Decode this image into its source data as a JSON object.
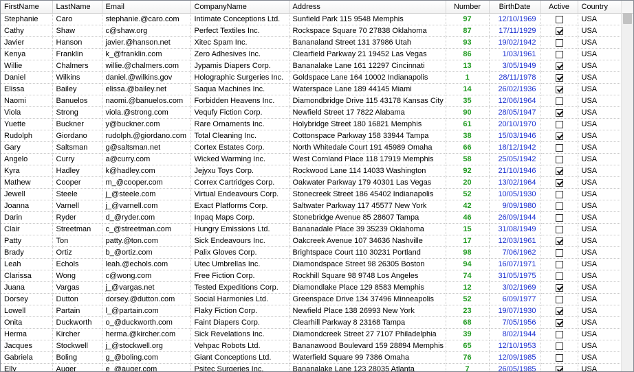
{
  "columns": [
    "FirstName",
    "LastName",
    "Email",
    "CompanyName",
    "Address",
    "Number",
    "BirthDate",
    "Active",
    "Country"
  ],
  "rows": [
    [
      "Stephanie",
      "Caro",
      "stephanie.@caro.com",
      "Intimate Conceptions Ltd.",
      "Sunfield Park 115 9548 Memphis",
      "97",
      "12/10/1969",
      false,
      "USA"
    ],
    [
      "Cathy",
      "Shaw",
      "c@shaw.org",
      "Perfect Textiles Inc.",
      "Rockspace Square 70 27838 Oklahoma",
      "87",
      "17/11/1929",
      true,
      "USA"
    ],
    [
      "Javier",
      "Hanson",
      "javier.@hanson.net",
      "Xitec Spam Inc.",
      "Bananaland Street 131 37986 Utah",
      "93",
      "19/02/1942",
      false,
      "USA"
    ],
    [
      "Kenya",
      "Franklin",
      "k_@franklin.com",
      "Zero Adhesives Inc.",
      "Clearfield Parkway 21 19452 Las Vegas",
      "86",
      "1/03/1961",
      false,
      "USA"
    ],
    [
      "Willie",
      "Chalmers",
      "willie.@chalmers.com",
      "Jypamis Diapers Corp.",
      "Bananalake Lane 161 12297 Cincinnati",
      "13",
      "3/05/1949",
      true,
      "USA"
    ],
    [
      "Daniel",
      "Wilkins",
      "daniel.@wilkins.gov",
      "Holographic Surgeries Inc.",
      "Goldspace Lane 164 10002 Indianapolis",
      "1",
      "28/11/1978",
      true,
      "USA"
    ],
    [
      "Elissa",
      "Bailey",
      "elissa.@bailey.net",
      "Saqua Machines Inc.",
      "Waterspace Lane 189 44145 Miami",
      "14",
      "26/02/1936",
      true,
      "USA"
    ],
    [
      "Naomi",
      "Banuelos",
      "naomi.@banuelos.com",
      "Forbidden Heavens Inc.",
      "Diamondbridge Drive 115 43178 Kansas City",
      "35",
      "12/06/1964",
      false,
      "USA"
    ],
    [
      "Viola",
      "Strong",
      "viola.@strong.com",
      "Vequfy Fiction Corp.",
      "Newfield Street 17 7822 Alabama",
      "90",
      "28/05/1947",
      true,
      "USA"
    ],
    [
      "Yuette",
      "Buckner",
      "y@buckner.com",
      "Rare Ornaments Inc.",
      "Holybridge Street 180 16821 Memphis",
      "61",
      "20/10/1970",
      false,
      "USA"
    ],
    [
      "Rudolph",
      "Giordano",
      "rudolph.@giordano.com",
      "Total Cleaning Inc.",
      "Cottonspace Parkway 158 33944 Tampa",
      "38",
      "15/03/1946",
      true,
      "USA"
    ],
    [
      "Gary",
      "Saltsman",
      "g@saltsman.net",
      "Cortex Estates Corp.",
      "North Whitedale Court 191 45989 Omaha",
      "66",
      "18/12/1942",
      false,
      "USA"
    ],
    [
      "Angelo",
      "Curry",
      "a@curry.com",
      "Wicked Warming Inc.",
      "West Cornland Place 118 17919 Memphis",
      "58",
      "25/05/1942",
      false,
      "USA"
    ],
    [
      "Kyra",
      "Hadley",
      "k@hadley.com",
      "Jejyxu Toys Corp.",
      "Rockwood Lane 114 14033 Washington",
      "92",
      "21/10/1946",
      true,
      "USA"
    ],
    [
      "Mathew",
      "Cooper",
      "m_@cooper.com",
      "Correx Cartridges Corp.",
      "Oakwater Parkway 179 40301 Las Vegas",
      "20",
      "13/02/1964",
      true,
      "USA"
    ],
    [
      "Jewell",
      "Steele",
      "j_@steele.com",
      "Virtual Endeavours Corp.",
      "Stonecreek Street 186 45402 Indianapolis",
      "52",
      "10/05/1930",
      false,
      "USA"
    ],
    [
      "Joanna",
      "Varnell",
      "j_@varnell.com",
      "Exact Platforms Corp.",
      "Saltwater Parkway 117 45577 New York",
      "42",
      "9/09/1980",
      false,
      "USA"
    ],
    [
      "Darin",
      "Ryder",
      "d_@ryder.com",
      "Inpaq Maps Corp.",
      "Stonebridge Avenue 85 28607 Tampa",
      "46",
      "26/09/1944",
      false,
      "USA"
    ],
    [
      "Clair",
      "Streetman",
      "c_@streetman.com",
      "Hungry Emissions Ltd.",
      "Bananadale Place 39 35239 Oklahoma",
      "15",
      "31/08/1949",
      false,
      "USA"
    ],
    [
      "Patty",
      "Ton",
      "patty.@ton.com",
      "Sick Endeavours Inc.",
      "Oakcreek Avenue 107 34636 Nashville",
      "17",
      "12/03/1961",
      true,
      "USA"
    ],
    [
      "Brady",
      "Ortiz",
      "b_@ortiz.com",
      "Palix Gloves Corp.",
      "Brightspace Court 110 30231 Portland",
      "98",
      "7/06/1962",
      false,
      "USA"
    ],
    [
      "Leah",
      "Echols",
      "leah.@echols.com",
      "Utec Umbrellas Inc.",
      "Diamondspace Street 98 26305 Boston",
      "94",
      "16/07/1971",
      false,
      "USA"
    ],
    [
      "Clarissa",
      "Wong",
      "c@wong.com",
      "Free Fiction Corp.",
      "Rockhill Square 98 9748 Los Angeles",
      "74",
      "31/05/1975",
      false,
      "USA"
    ],
    [
      "Juana",
      "Vargas",
      "j_@vargas.net",
      "Tested Expeditions Corp.",
      "Diamondlake Place 129 8583 Memphis",
      "12",
      "3/02/1969",
      true,
      "USA"
    ],
    [
      "Dorsey",
      "Dutton",
      "dorsey.@dutton.com",
      "Social Harmonies Ltd.",
      "Greenspace Drive 134 37496 Minneapolis",
      "52",
      "6/09/1977",
      false,
      "USA"
    ],
    [
      "Lowell",
      "Partain",
      "l_@partain.com",
      "Flaky Fiction Corp.",
      "Newfield Place 138 26993 New York",
      "23",
      "19/07/1930",
      true,
      "USA"
    ],
    [
      "Onita",
      "Duckworth",
      "o_@duckworth.com",
      "Faint Diapers Corp.",
      "Clearhill Parkway 8 23168 Tampa",
      "68",
      "7/05/1956",
      true,
      "USA"
    ],
    [
      "Herma",
      "Kircher",
      "herma.@kircher.com",
      "Sick Revelations Inc.",
      "Diamondcreek Street 27 7107 Philadelphia",
      "39",
      "8/02/1944",
      false,
      "USA"
    ],
    [
      "Jacques",
      "Stockwell",
      "j_@stockwell.org",
      "Vehpac Robots Ltd.",
      "Bananawood Boulevard 159 28894 Memphis",
      "65",
      "12/10/1953",
      false,
      "USA"
    ],
    [
      "Gabriela",
      "Boling",
      "g_@boling.com",
      "Giant Conceptions Ltd.",
      "Waterfield Square 99 7386 Omaha",
      "76",
      "12/09/1985",
      false,
      "USA"
    ],
    [
      "Elly",
      "Auger",
      "e_@auger.com",
      "Psitec Surgeries Inc.",
      "Bananalake Lane 123 28035 Atlanta",
      "7",
      "26/05/1985",
      true,
      "USA"
    ]
  ]
}
